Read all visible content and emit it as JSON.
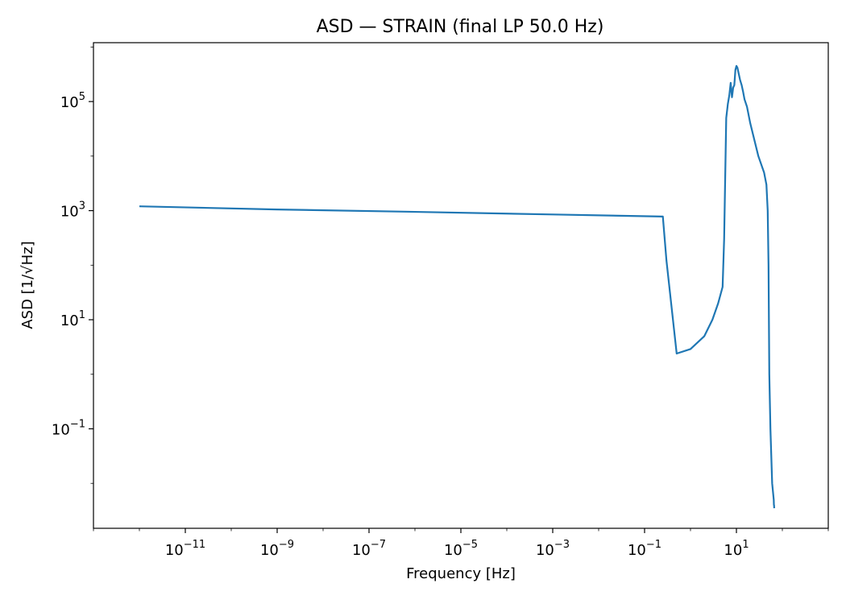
{
  "chart_data": {
    "type": "line",
    "title": "ASD — STRAIN (final LP 50.0 Hz)",
    "xlabel": "Frequency [Hz]",
    "ylabel": "ASD [1/√Hz]",
    "xscale": "log",
    "yscale": "log",
    "xlim": [
      1e-13,
      1000
    ],
    "ylim": [
      0.0015,
      1200000
    ],
    "grid": false,
    "legend": "none",
    "line_color": "#1f77b4",
    "xticks": [
      {
        "base": "10",
        "exp": "−11",
        "value": 1e-11
      },
      {
        "base": "10",
        "exp": "−9",
        "value": 1e-09
      },
      {
        "base": "10",
        "exp": "−7",
        "value": 1e-07
      },
      {
        "base": "10",
        "exp": "−5",
        "value": 1e-05
      },
      {
        "base": "10",
        "exp": "−3",
        "value": 0.001
      },
      {
        "base": "10",
        "exp": "−1",
        "value": 0.1
      },
      {
        "base": "10",
        "exp": "1",
        "value": 10
      }
    ],
    "yticks": [
      {
        "base": "10",
        "exp": "−1",
        "value": 0.1
      },
      {
        "base": "10",
        "exp": "1",
        "value": 10
      },
      {
        "base": "10",
        "exp": "3",
        "value": 1000
      },
      {
        "base": "10",
        "exp": "5",
        "value": 100000
      }
    ],
    "series": [
      {
        "x": [
          1e-12,
          1e-09,
          1e-06,
          0.001,
          0.25,
          0.3,
          0.5,
          1.0,
          2.0,
          3.0,
          4.0,
          5.0,
          5.4,
          6.0,
          6.5,
          7.0,
          7.5,
          8.0,
          8.5,
          9.0,
          9.5,
          10.0,
          10.5,
          11.0,
          12.0,
          13.0,
          14.0,
          15.0,
          17.0,
          20.0,
          30.0,
          40.0,
          45.0,
          48.0,
          50.0,
          52.0,
          55.0,
          60.0,
          65.0,
          65.5,
          66.0,
          66.5
        ],
        "y": [
          1200,
          1050,
          950,
          850,
          780,
          120,
          2.4,
          2.9,
          5.0,
          10.0,
          20.0,
          40.0,
          300.0,
          50000.0,
          90000.0,
          130000.0,
          220000.0,
          120000.0,
          180000.0,
          200000.0,
          380000.0,
          450000.0,
          420000.0,
          350000.0,
          250000.0,
          200000.0,
          150000.0,
          110000.0,
          80000.0,
          40000.0,
          10000.0,
          5000.0,
          3000.0,
          1000.0,
          100.0,
          1.0,
          0.1,
          0.01,
          0.005,
          0.004,
          0.004,
          0.0035
        ]
      }
    ]
  }
}
